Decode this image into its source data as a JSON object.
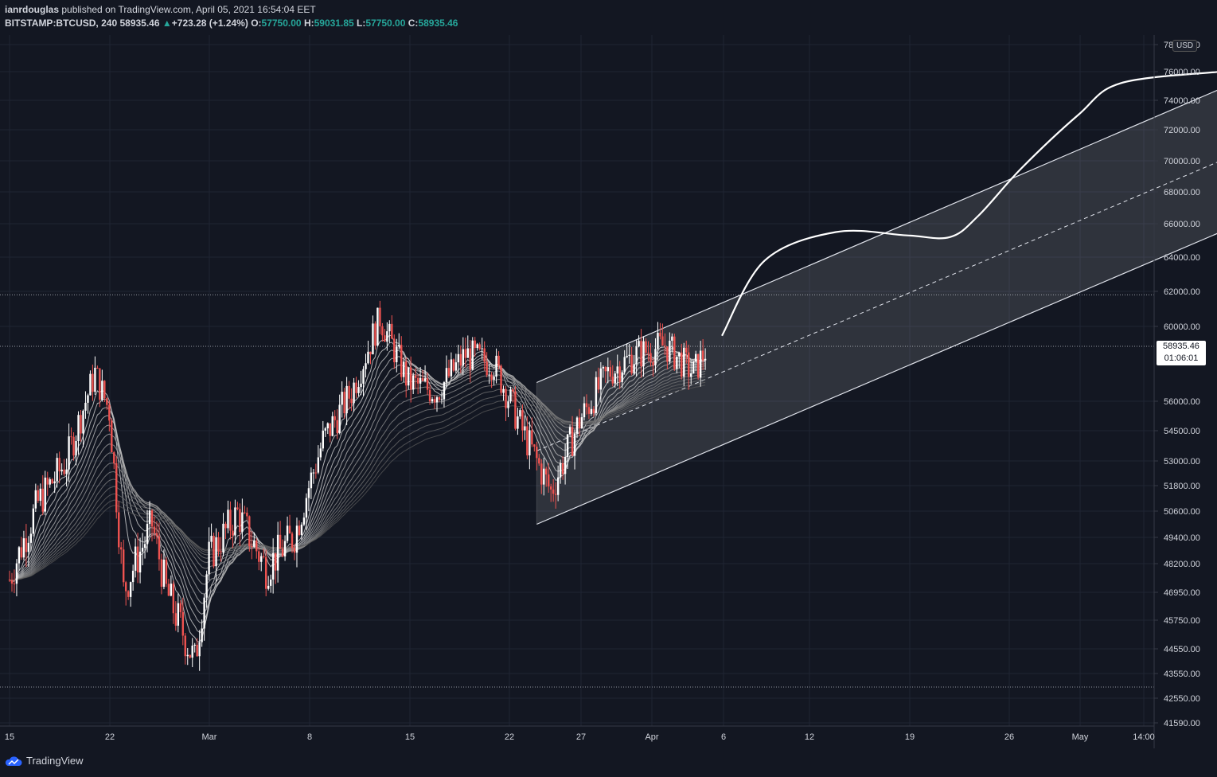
{
  "header": {
    "publisher": "ianrdouglas",
    "published_text": "published on TradingView.com, April 05, 2021 16:54:04 EET",
    "symbol": "BITSTAMP:BTCUSD, 240",
    "last": "58935.46",
    "change": "+723.28 (+1.24%)",
    "o_label": "O:",
    "o_val": "57750.00",
    "h_label": "H:",
    "h_val": "59031.85",
    "l_label": "L:",
    "l_val": "57750.00",
    "c_label": "C:",
    "c_val": "58935.46"
  },
  "price_axis": {
    "currency": "USD",
    "current_price": "58935.46",
    "countdown": "01:06:01"
  },
  "footer": {
    "brand": "TradingView"
  },
  "colors": {
    "background": "#131722",
    "up": "#ffffff",
    "down": "#ef5350",
    "channel": "#ffffff"
  },
  "chart_data": {
    "type": "candlestick",
    "symbol": "BITSTAMP:BTCUSD",
    "interval": "240",
    "y_ticks": [
      "78000.00",
      "76000.00",
      "74000.00",
      "72000.00",
      "70000.00",
      "68000.00",
      "66000.00",
      "64000.00",
      "62000.00",
      "60000.00",
      "56000.00",
      "54500.00",
      "53000.00",
      "51800.00",
      "50600.00",
      "49400.00",
      "48200.00",
      "46950.00",
      "45750.00",
      "44550.00",
      "43550.00",
      "42550.00",
      "41590.00"
    ],
    "x_ticks": [
      "15",
      "22",
      "Mar",
      "8",
      "15",
      "22",
      "27",
      "Apr",
      "6",
      "12",
      "19",
      "26",
      "May",
      "14:00"
    ],
    "price_path": [
      [
        "2021-02-15",
        47500
      ],
      [
        "2021-02-17",
        51000
      ],
      [
        "2021-02-19",
        53000
      ],
      [
        "2021-02-21",
        57500
      ],
      [
        "2021-02-22",
        55500
      ],
      [
        "2021-02-23",
        47000
      ],
      [
        "2021-02-25",
        50000
      ],
      [
        "2021-02-26",
        47000
      ],
      [
        "2021-02-28",
        44000
      ],
      [
        "2021-03-01",
        48500
      ],
      [
        "2021-03-03",
        50500
      ],
      [
        "2021-03-05",
        48000
      ],
      [
        "2021-03-07",
        49500
      ],
      [
        "2021-03-09",
        54000
      ],
      [
        "2021-03-11",
        56500
      ],
      [
        "2021-03-13",
        60500
      ],
      [
        "2021-03-15",
        57000
      ],
      [
        "2021-03-17",
        56500
      ],
      [
        "2021-03-19",
        58500
      ],
      [
        "2021-03-21",
        58000
      ],
      [
        "2021-03-23",
        54500
      ],
      [
        "2021-03-25",
        51500
      ],
      [
        "2021-03-27",
        55000
      ],
      [
        "2021-03-29",
        57500
      ],
      [
        "2021-03-31",
        58500
      ],
      [
        "2021-04-02",
        59000
      ],
      [
        "2021-04-04",
        57500
      ],
      [
        "2021-04-05",
        58935
      ]
    ],
    "channel": {
      "upper": [
        [
          "2021-03-24",
          57000
        ],
        [
          "2021-05-11",
          74800
        ]
      ],
      "lower": [
        [
          "2021-03-24",
          50000
        ],
        [
          "2021-05-11",
          65500
        ]
      ],
      "mid": [
        [
          "2021-03-24",
          53500
        ],
        [
          "2021-05-11",
          70000
        ]
      ]
    },
    "projection": [
      [
        "2021-04-06",
        59500
      ],
      [
        "2021-04-09",
        63800
      ],
      [
        "2021-04-14",
        65500
      ],
      [
        "2021-04-19",
        65300
      ],
      [
        "2021-04-22",
        65200
      ],
      [
        "2021-04-24",
        66500
      ],
      [
        "2021-04-27",
        69500
      ],
      [
        "2021-05-01",
        73000
      ],
      [
        "2021-05-04",
        75200
      ],
      [
        "2021-05-11",
        76000
      ]
    ],
    "horizontal_levels": [
      61800,
      58935.46,
      43000
    ]
  }
}
